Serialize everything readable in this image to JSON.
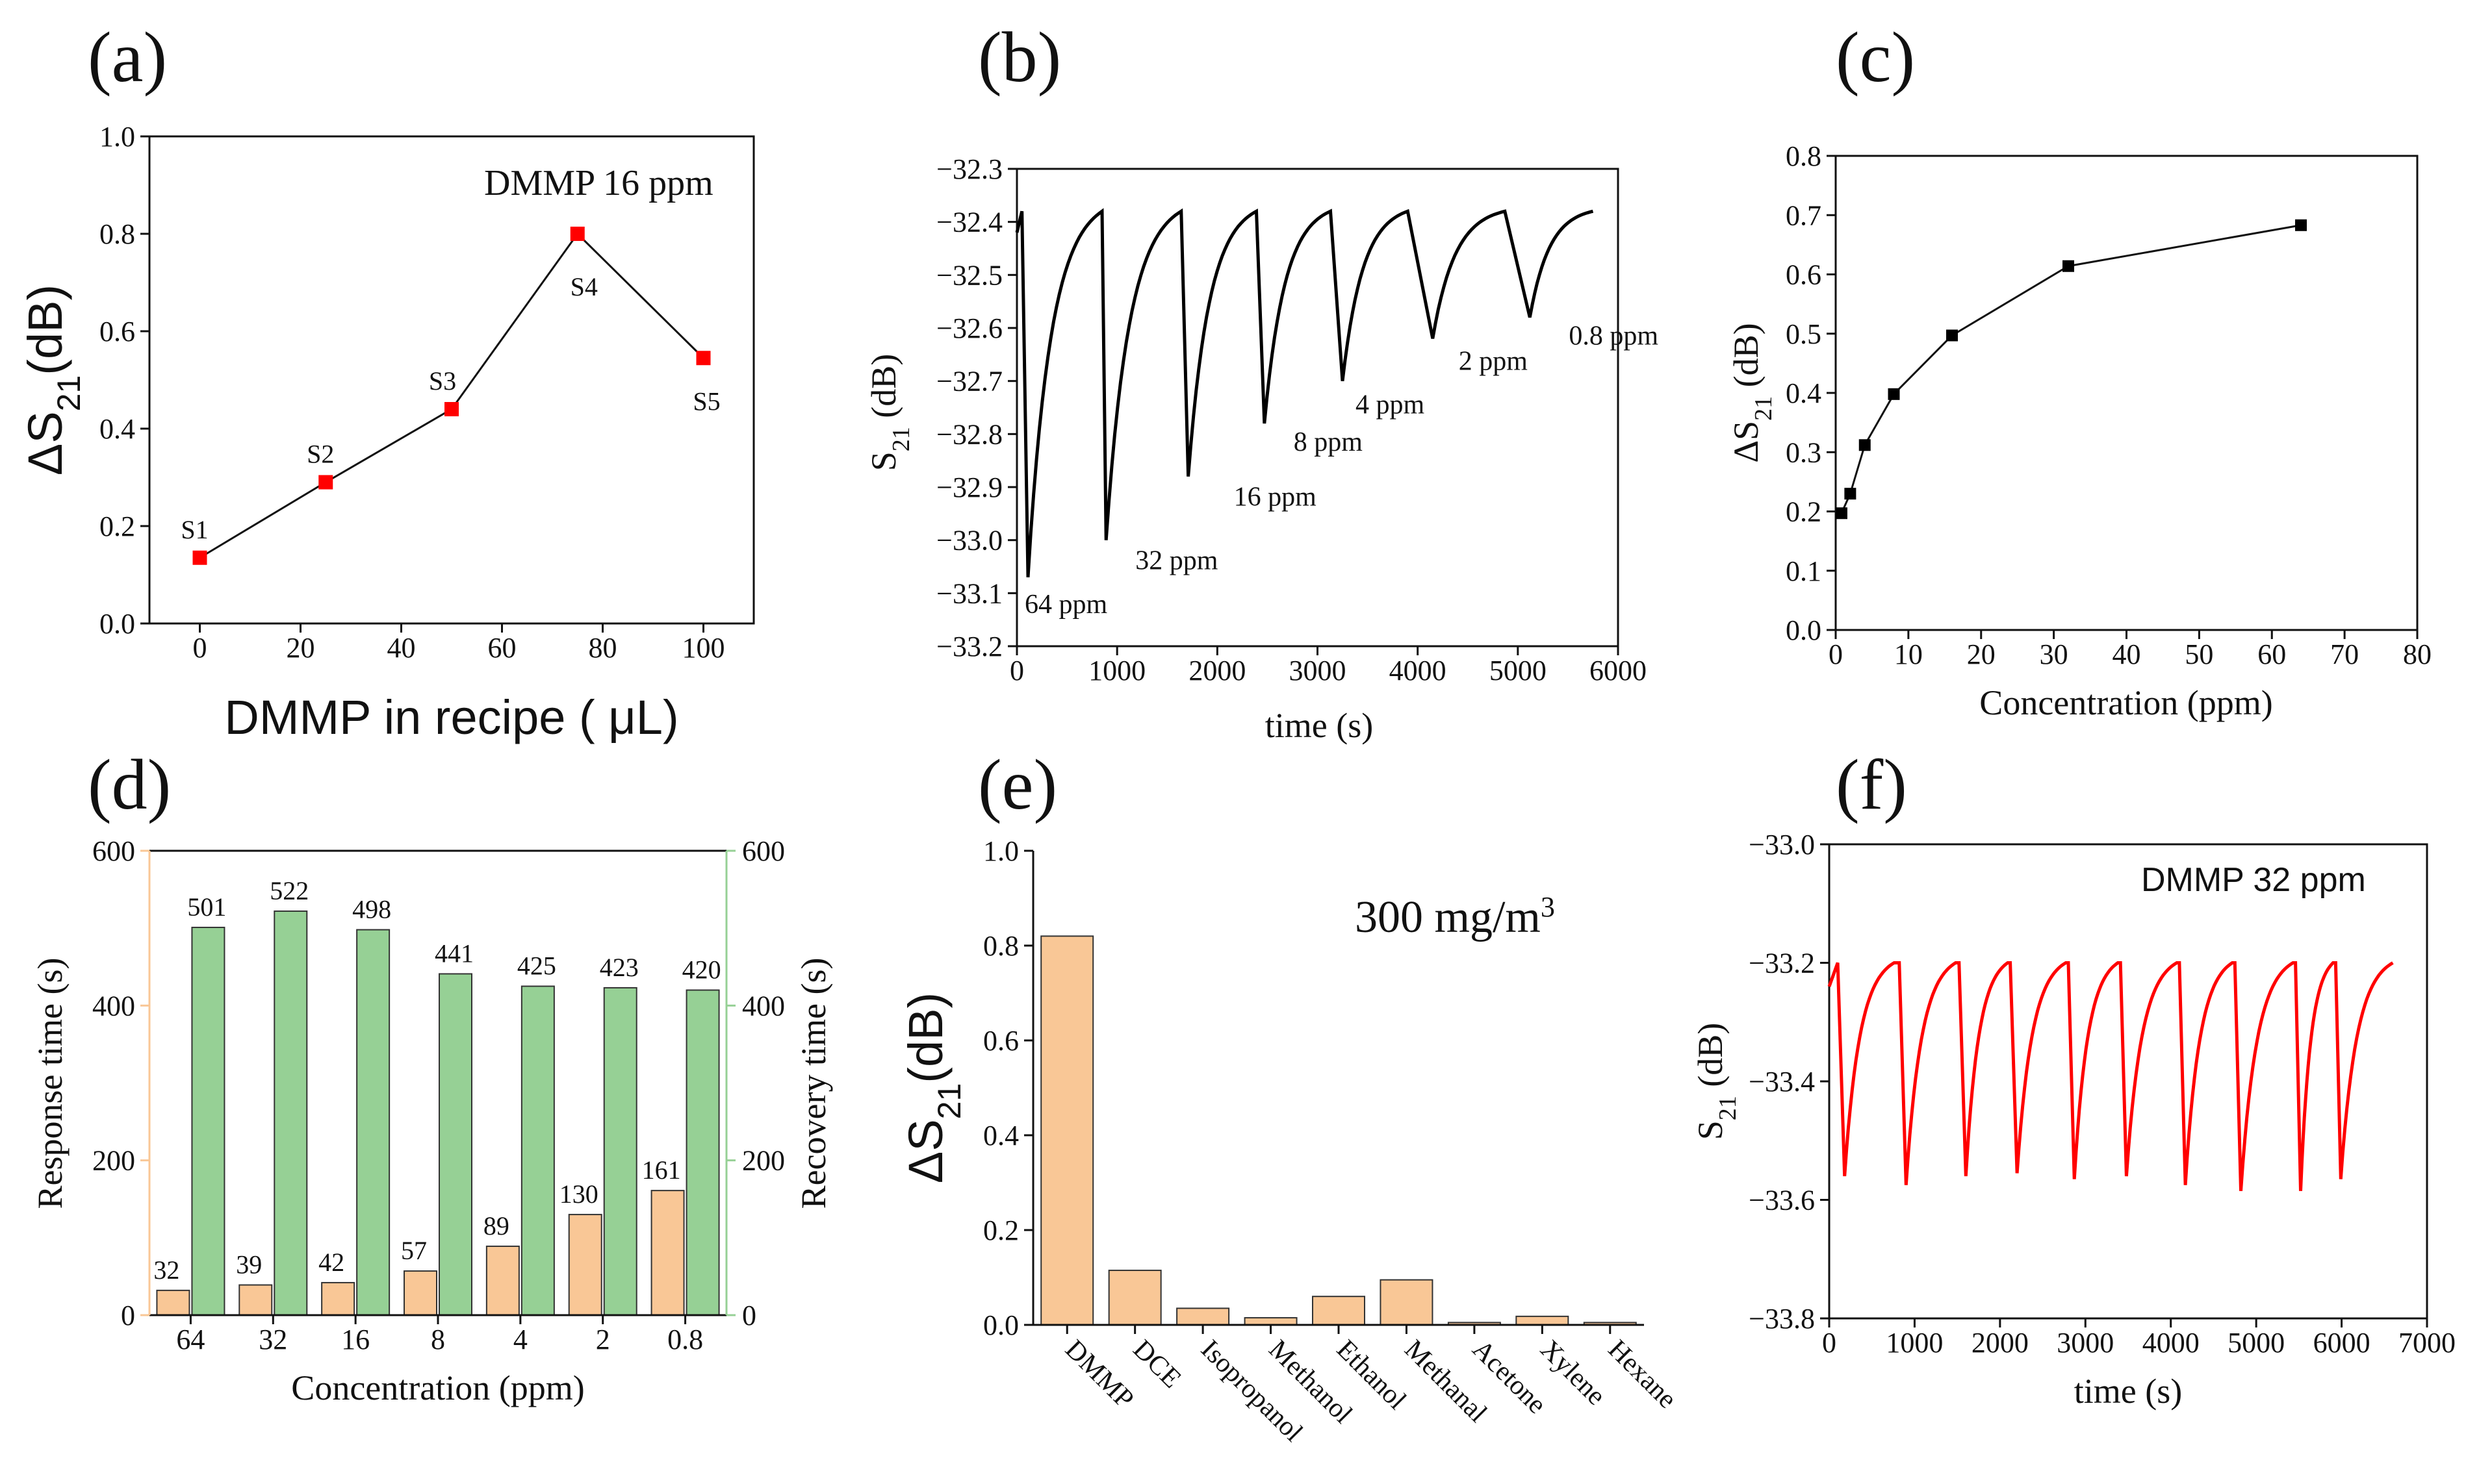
{
  "figure_title": "Six-panel DMMP gas sensor figure",
  "chart_data": [
    {
      "id": "a",
      "panel_label": "(a)",
      "type": "line",
      "title": "",
      "annotation": "DMMP 16 ppm",
      "xlabel": "DMMP in recipe ( μL)",
      "ylabel_main": "ΔS",
      "ylabel_sub": "21",
      "ylabel_tail": "(dB)",
      "xlim": [
        -10,
        110
      ],
      "ylim": [
        0,
        1.0
      ],
      "xticks": [
        0,
        20,
        40,
        60,
        80,
        100
      ],
      "yticks": [
        0.0,
        0.2,
        0.4,
        0.6,
        0.8,
        1.0
      ],
      "xtick_labels": [
        "0",
        "20",
        "40",
        "60",
        "80",
        "100"
      ],
      "ytick_labels": [
        "0.0",
        "0.2",
        "0.4",
        "0.6",
        "0.8",
        "1.0"
      ],
      "color": "#ff0000",
      "points": [
        {
          "x": 0,
          "y": 0.135,
          "label": "S1"
        },
        {
          "x": 25,
          "y": 0.29,
          "label": "S2"
        },
        {
          "x": 50,
          "y": 0.44,
          "label": "S3"
        },
        {
          "x": 75,
          "y": 0.8,
          "label": "S4"
        },
        {
          "x": 100,
          "y": 0.545,
          "label": "S5"
        }
      ]
    },
    {
      "id": "b",
      "panel_label": "(b)",
      "type": "line",
      "xlabel": "time (s)",
      "ylabel_main": "S",
      "ylabel_sub": "21",
      "ylabel_tail": " (dB)",
      "xlim": [
        0,
        6000
      ],
      "ylim": [
        -33.2,
        -32.3
      ],
      "xticks": [
        0,
        1000,
        2000,
        3000,
        4000,
        5000,
        6000
      ],
      "yticks": [
        -32.3,
        -32.4,
        -32.5,
        -32.6,
        -32.7,
        -32.8,
        -32.9,
        -33.0,
        -33.1,
        -33.2
      ],
      "xtick_labels": [
        "0",
        "1000",
        "2000",
        "3000",
        "4000",
        "5000",
        "6000"
      ],
      "ytick_labels": [
        "−32.3",
        "−32.4",
        "−32.5",
        "−32.6",
        "−32.7",
        "−32.8",
        "−32.9",
        "−33.0",
        "−33.1",
        "−33.2"
      ],
      "color": "#000000",
      "baseline": -32.38,
      "start": {
        "x": 0,
        "y": -32.42
      },
      "cycles": [
        {
          "start": 50,
          "min_t": 110,
          "min_v": -33.07,
          "end": 850,
          "label": "64 ppm"
        },
        {
          "start": 850,
          "min_t": 890,
          "min_v": -33.0,
          "end": 1640,
          "label": "32 ppm"
        },
        {
          "start": 1640,
          "min_t": 1710,
          "min_v": -32.88,
          "end": 2390,
          "label": "16 ppm"
        },
        {
          "start": 2390,
          "min_t": 2470,
          "min_v": -32.78,
          "end": 3130,
          "label": "8 ppm"
        },
        {
          "start": 3130,
          "min_t": 3250,
          "min_v": -32.7,
          "end": 3900,
          "label": "4 ppm"
        },
        {
          "start": 3900,
          "min_t": 4150,
          "min_v": -32.62,
          "end": 4870,
          "label": "2 ppm"
        },
        {
          "start": 4870,
          "min_t": 5120,
          "min_v": -32.58,
          "end": 5750,
          "label": "0.8 ppm"
        }
      ]
    },
    {
      "id": "c",
      "panel_label": "(c)",
      "type": "line",
      "xlabel": "Concentration (ppm)",
      "ylabel_main": "ΔS",
      "ylabel_sub": "21",
      "ylabel_tail": " (dB)",
      "xlim": [
        0,
        80
      ],
      "ylim": [
        0,
        0.8
      ],
      "xticks": [
        0,
        10,
        20,
        30,
        40,
        50,
        60,
        70,
        80
      ],
      "yticks": [
        0.0,
        0.1,
        0.2,
        0.3,
        0.4,
        0.5,
        0.6,
        0.7,
        0.8
      ],
      "xtick_labels": [
        "0",
        "10",
        "20",
        "30",
        "40",
        "50",
        "60",
        "70",
        "80"
      ],
      "ytick_labels": [
        "0.0",
        "0.1",
        "0.2",
        "0.3",
        "0.4",
        "0.5",
        "0.6",
        "0.7",
        "0.8"
      ],
      "color": "#000000",
      "x": [
        0.8,
        2,
        4,
        8,
        16,
        32,
        64
      ],
      "y": [
        0.197,
        0.23,
        0.312,
        0.398,
        0.497,
        0.614,
        0.683
      ]
    },
    {
      "id": "d",
      "panel_label": "(d)",
      "type": "bar",
      "xlabel": "Concentration (ppm)",
      "ylabel_left": "Response time (s)",
      "ylabel_right": "Recovery time (s)",
      "categories": [
        "64",
        "32",
        "16",
        "8",
        "4",
        "2",
        "0.8"
      ],
      "ylim": [
        0,
        600
      ],
      "yticks": [
        0,
        200,
        400,
        600
      ],
      "ytick_labels": [
        "0",
        "200",
        "400",
        "600"
      ],
      "series": [
        {
          "name": "Response time",
          "color": "#f9c796",
          "values": [
            32,
            39,
            42,
            57,
            89,
            130,
            161
          ]
        },
        {
          "name": "Recovery time",
          "color": "#96d095",
          "values": [
            501,
            522,
            498,
            441,
            425,
            423,
            420
          ]
        }
      ]
    },
    {
      "id": "e",
      "panel_label": "(e)",
      "type": "bar",
      "annotation": "300 mg/m",
      "annotation_sup": "3",
      "xlabel": "",
      "ylabel_main": "ΔS",
      "ylabel_sub": "21",
      "ylabel_tail": "(dB)",
      "categories": [
        "DMMP",
        "DCE",
        "Isopropanol",
        "Methanol",
        "Ethanol",
        "Methanal",
        "Acetone",
        "Xylene",
        "Hexane"
      ],
      "values": [
        0.82,
        0.115,
        0.035,
        0.015,
        0.06,
        0.095,
        0.005,
        0.018,
        0.005
      ],
      "ylim": [
        0,
        1.0
      ],
      "yticks": [
        0.0,
        0.2,
        0.4,
        0.6,
        0.8,
        1.0
      ],
      "ytick_labels": [
        "0.0",
        "0.2",
        "0.4",
        "0.6",
        "0.8",
        "1.0"
      ],
      "color": "#f9c796"
    },
    {
      "id": "f",
      "panel_label": "(f)",
      "type": "line",
      "annotation": "DMMP 32 ppm",
      "xlabel": "time (s)",
      "ylabel_main": "S",
      "ylabel_sub": "21",
      "ylabel_tail": " (dB)",
      "xlim": [
        0,
        7000
      ],
      "ylim": [
        -33.8,
        -33.0
      ],
      "xticks": [
        0,
        1000,
        2000,
        3000,
        4000,
        5000,
        6000,
        7000
      ],
      "yticks": [
        -33.0,
        -33.2,
        -33.4,
        -33.6,
        -33.8
      ],
      "xtick_labels": [
        "0",
        "1000",
        "2000",
        "3000",
        "4000",
        "5000",
        "6000",
        "7000"
      ],
      "ytick_labels": [
        "−33.0",
        "−33.2",
        "−33.4",
        "−33.6",
        "−33.8"
      ],
      "color": "#ff0000",
      "baseline": -33.2,
      "start": {
        "x": 0,
        "y": -33.24
      },
      "cycles": [
        {
          "start": 100,
          "min_t": 180,
          "min_v": -33.56,
          "end": 760
        },
        {
          "start": 820,
          "min_t": 900,
          "min_v": -33.575,
          "end": 1480
        },
        {
          "start": 1520,
          "min_t": 1600,
          "min_v": -33.56,
          "end": 2090
        },
        {
          "start": 2120,
          "min_t": 2200,
          "min_v": -33.555,
          "end": 2770
        },
        {
          "start": 2800,
          "min_t": 2870,
          "min_v": -33.565,
          "end": 3380
        },
        {
          "start": 3410,
          "min_t": 3480,
          "min_v": -33.56,
          "end": 4070
        },
        {
          "start": 4100,
          "min_t": 4170,
          "min_v": -33.575,
          "end": 4720
        },
        {
          "start": 4750,
          "min_t": 4820,
          "min_v": -33.585,
          "end": 5430
        },
        {
          "start": 5460,
          "min_t": 5520,
          "min_v": -33.585,
          "end": 5900
        },
        {
          "start": 5930,
          "min_t": 5990,
          "min_v": -33.565,
          "end": 6600
        }
      ]
    }
  ]
}
